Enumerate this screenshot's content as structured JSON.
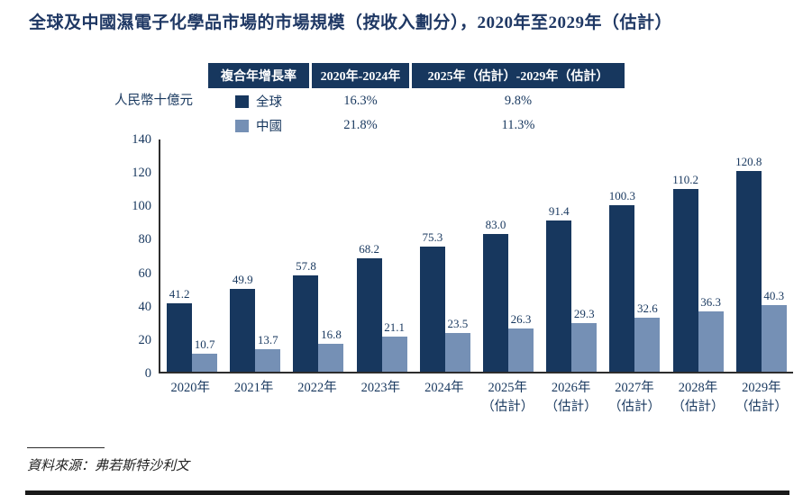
{
  "title": "全球及中國濕電子化學品市場的市場規模（按收入劃分），2020年至2029年（估計）",
  "colors": {
    "title": "#1f3864",
    "global_series": "#17375e",
    "china_series": "#7590b5",
    "axis": "#2d2d2d"
  },
  "cagr_table": {
    "header": [
      "複合年增長率",
      "2020年-2024年",
      "2025年（估計）-2029年（估計）"
    ],
    "rows": [
      {
        "label": "全球",
        "color": "#17375e",
        "values": [
          "16.3%",
          "9.8%"
        ]
      },
      {
        "label": "中國",
        "color": "#7590b5",
        "values": [
          "21.8%",
          "11.3%"
        ]
      }
    ]
  },
  "chart_data": {
    "type": "bar",
    "title": "全球及中國濕電子化學品市場的市場規模（按收入劃分），2020年至2029年（估計）",
    "ylabel": "人民幣十億元",
    "ylim": [
      0,
      140
    ],
    "ytick_step": 20,
    "grid": false,
    "legend_position": "top-table",
    "categories": [
      "2020年",
      "2021年",
      "2022年",
      "2023年",
      "2024年",
      "2025年\n（估計）",
      "2026年\n（估計）",
      "2027年\n（估計）",
      "2028年\n（估計）",
      "2029年\n（估計）"
    ],
    "series": [
      {
        "name": "全球",
        "color": "#17375e",
        "values": [
          41.2,
          49.9,
          57.8,
          68.2,
          75.3,
          83.0,
          91.4,
          100.3,
          110.2,
          120.8
        ]
      },
      {
        "name": "中國",
        "color": "#7590b5",
        "values": [
          10.7,
          13.7,
          16.8,
          21.1,
          23.5,
          26.3,
          29.3,
          32.6,
          36.3,
          40.3
        ]
      }
    ]
  },
  "source": "資料來源：弗若斯特沙利文"
}
